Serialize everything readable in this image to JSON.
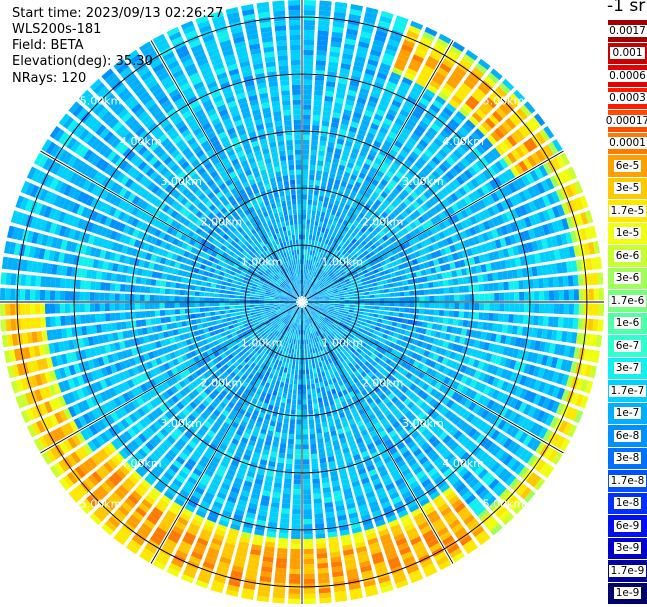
{
  "info": {
    "start_time": "Start time: 2023/09/13 02:26:27",
    "instrument": "WLS200s-181",
    "field": "Field: BETA",
    "elevation": "Elevation(deg): 35.30",
    "nrays": "NRays: 120"
  },
  "colorbar": {
    "unit": "-1 sr",
    "entries": [
      {
        "label": "0.0017",
        "color": "#a00000"
      },
      {
        "label": "0.001",
        "color": "#c80000"
      },
      {
        "label": "0.0006",
        "color": "#e60000"
      },
      {
        "label": "0.0003",
        "color": "#ff1a00"
      },
      {
        "label": "0.00017",
        "color": "#ff4a00"
      },
      {
        "label": "0.0001",
        "color": "#ff7a00"
      },
      {
        "label": "6e-5",
        "color": "#ffa000"
      },
      {
        "label": "3e-5",
        "color": "#ffc800"
      },
      {
        "label": "1.7e-5",
        "color": "#ffe800"
      },
      {
        "label": "1e-5",
        "color": "#f0ff10"
      },
      {
        "label": "6e-6",
        "color": "#c8ff30"
      },
      {
        "label": "3e-6",
        "color": "#a0ff58"
      },
      {
        "label": "1.7e-6",
        "color": "#78ff80"
      },
      {
        "label": "1e-6",
        "color": "#50ffa8"
      },
      {
        "label": "6e-7",
        "color": "#30ffd0"
      },
      {
        "label": "3e-7",
        "color": "#10f0f0"
      },
      {
        "label": "1.7e-7",
        "color": "#00d0ff"
      },
      {
        "label": "1e-7",
        "color": "#00b0ff"
      },
      {
        "label": "6e-8",
        "color": "#0090ff"
      },
      {
        "label": "3e-8",
        "color": "#0070ff"
      },
      {
        "label": "1.7e-8",
        "color": "#0050ff"
      },
      {
        "label": "1e-8",
        "color": "#0030ff"
      },
      {
        "label": "6e-9",
        "color": "#0010f0"
      },
      {
        "label": "3e-9",
        "color": "#0000c8"
      },
      {
        "label": "1.7e-9",
        "color": "#00009a"
      },
      {
        "label": "1e-9",
        "color": "#00006a"
      }
    ]
  },
  "chart_data": {
    "type": "heatmap",
    "projection": "polar PPI scan",
    "rays": 120,
    "range_max_km": 5.3,
    "range_rings_km": [
      1.0,
      2.0,
      3.0,
      4.0,
      5.0
    ],
    "range_labels": [
      "1.00km",
      "2.00km",
      "3.00km",
      "4.00km",
      "5.00km"
    ],
    "spokes_deg": [
      0,
      30,
      60,
      90,
      120,
      150,
      180,
      210,
      240,
      270,
      300,
      330
    ],
    "color_scale": "log",
    "value_min": 1e-09,
    "value_max": 0.0017,
    "background_beta": "3e-8 to 3e-7",
    "high_beta_features": [
      {
        "azimuth_range_deg": [
          20,
          60
        ],
        "range_km": [
          4.3,
          5.2
        ],
        "beta": "1e-6 to 1e-4"
      },
      {
        "azimuth_range_deg": [
          60,
          145
        ],
        "range_km": [
          4.9,
          5.3
        ],
        "beta": "1e-6 to 3e-5"
      },
      {
        "azimuth_range_deg": [
          140,
          235
        ],
        "range_km": [
          4.2,
          5.3
        ],
        "beta": "3e-6 to 1e-4"
      },
      {
        "azimuth_range_deg": [
          230,
          270
        ],
        "range_km": [
          4.5,
          5.3
        ],
        "beta": "1e-6 to 6e-5"
      }
    ]
  }
}
